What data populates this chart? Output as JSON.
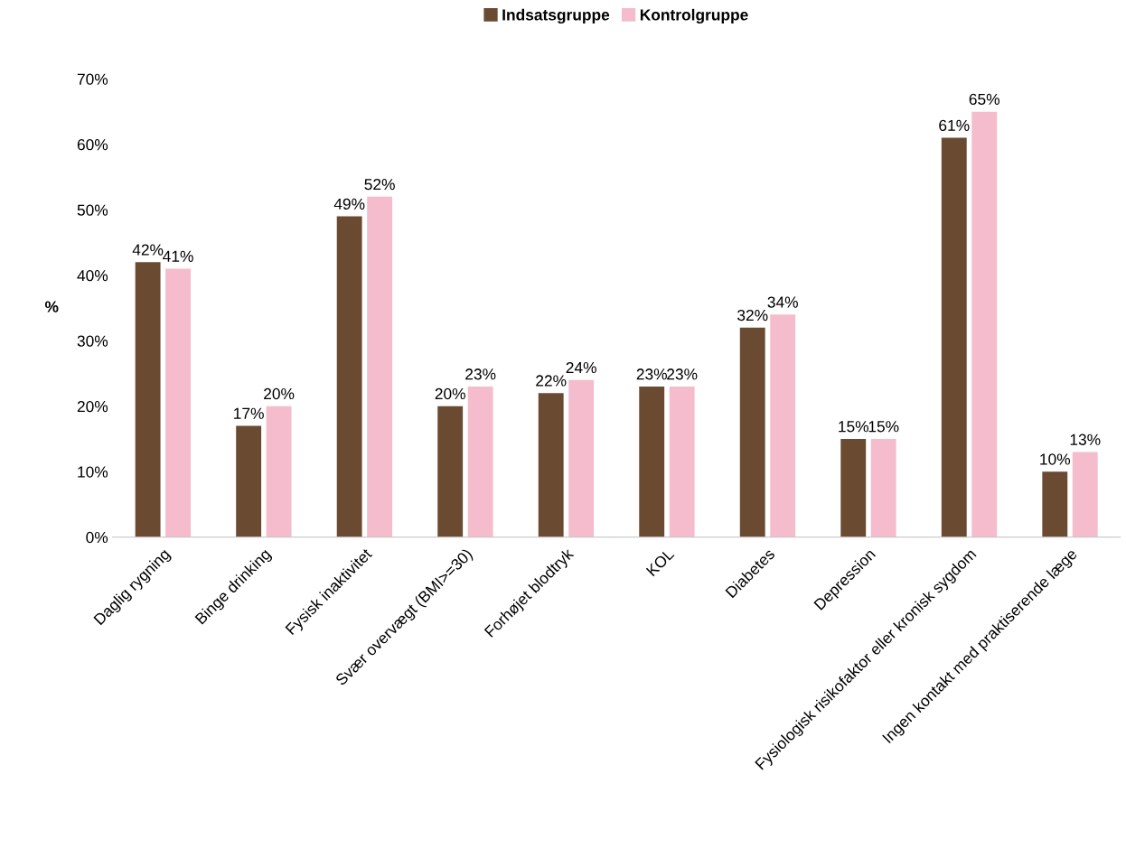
{
  "chart_data": {
    "type": "bar",
    "ylabel": "%",
    "categories": [
      "Daglig rygning",
      "Binge drinking",
      "Fysisk inaktivitet",
      "Svær overvægt (BMI>=30)",
      "Forhøjet blodtryk",
      "KOL",
      "Diabetes",
      "Depression",
      "Fysiologisk risikofaktor eller kronisk sygdom",
      "Ingen kontakt med praktiserende læge"
    ],
    "series": [
      {
        "name": "Indsatsgruppe",
        "color": "#6b4a32",
        "values": [
          42,
          17,
          49,
          20,
          22,
          23,
          32,
          15,
          61,
          10
        ],
        "value_labels": [
          "42%",
          "17%",
          "49%",
          "20%",
          "22%",
          "23%",
          "32%",
          "15%",
          "61%",
          "10%"
        ]
      },
      {
        "name": "Kontrolgruppe",
        "color": "#f4bccc",
        "values": [
          41,
          20,
          52,
          23,
          24,
          23,
          34,
          15,
          65,
          13
        ],
        "value_labels": [
          "41%",
          "20%",
          "52%",
          "23%",
          "24%",
          "23%",
          "34%",
          "15%",
          "65%",
          "13%"
        ]
      }
    ],
    "ylim": [
      0,
      70
    ],
    "yticks": [
      {
        "value": 0,
        "label": "0%"
      },
      {
        "value": 10,
        "label": "10%"
      },
      {
        "value": 20,
        "label": "20%"
      },
      {
        "value": 30,
        "label": "30%"
      },
      {
        "value": 40,
        "label": "40%"
      },
      {
        "value": 50,
        "label": "50%"
      },
      {
        "value": 60,
        "label": "60%"
      },
      {
        "value": 70,
        "label": "70%"
      }
    ],
    "grid": false,
    "legend": "top"
  }
}
